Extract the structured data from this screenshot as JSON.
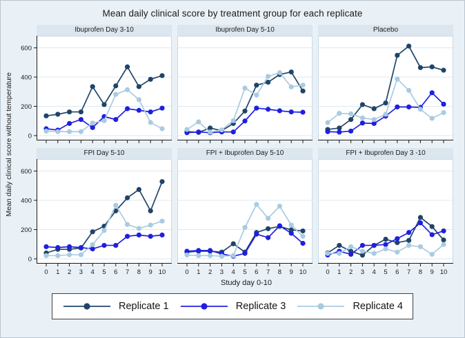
{
  "title": "Mean daily clinical score by treatment group for each replicate",
  "y_axis_label": "Mean daily clinical score without temperature",
  "x_axis_label": "Study day 0-10",
  "colors": {
    "background": "#e9f1f7",
    "panel_header_bg": "#dce6ee",
    "plot_bg": "#ffffff",
    "gridline": "#dce9f2",
    "panel_border": "#c9d9e5",
    "axis": "#1a1a1a",
    "replicate1": "#1f4468",
    "replicate3": "#1f1fe0",
    "replicate4": "#a9cbe2"
  },
  "series_meta": [
    {
      "name": "Replicate 1",
      "color": "#1f4468"
    },
    {
      "name": "Replicate 3",
      "color": "#1f1fe0"
    },
    {
      "name": "Replicate 4",
      "color": "#a9cbe2"
    }
  ],
  "chart_data": {
    "type": "line",
    "layout": "2 rows x 3 cols small multiples",
    "x": [
      0,
      1,
      2,
      3,
      4,
      5,
      6,
      7,
      8,
      9,
      10
    ],
    "x_ticks": [
      0,
      1,
      2,
      3,
      4,
      5,
      6,
      7,
      8,
      9,
      10
    ],
    "y_ticks": [
      0,
      200,
      400,
      600
    ],
    "ylim": [
      0,
      650
    ],
    "grid": true,
    "legend_position": "bottom",
    "panels": [
      {
        "title": "Ibuprofen Day 3-10",
        "series": [
          {
            "name": "Replicate 1",
            "values": [
              135,
              146,
              162,
              162,
              335,
              212,
              340,
              470,
              335,
              385,
              410
            ]
          },
          {
            "name": "Replicate 3",
            "values": [
              47,
              38,
              83,
              110,
              55,
              130,
              110,
              184,
              173,
              162,
              188
            ]
          },
          {
            "name": "Replicate 4",
            "values": [
              31,
              27,
              27,
              27,
              86,
              102,
              282,
              314,
              246,
              90,
              47
            ]
          }
        ]
      },
      {
        "title": "Ibuprofen Day 5-10",
        "series": [
          {
            "name": "Replicate 1",
            "values": [
              27,
              22,
              52,
              33,
              83,
              168,
              345,
              365,
              418,
              435,
              305
            ]
          },
          {
            "name": "Replicate 3",
            "values": [
              20,
              25,
              20,
              25,
              25,
              100,
              188,
              180,
              170,
              162,
              160
            ]
          },
          {
            "name": "Replicate 4",
            "values": [
              42,
              94,
              24,
              39,
              102,
              325,
              277,
              405,
              430,
              333,
              345
            ]
          }
        ]
      },
      {
        "title": "Placebo",
        "series": [
          {
            "name": "Replicate 1",
            "values": [
              42,
              52,
              110,
              212,
              184,
              223,
              549,
              612,
              465,
              470,
              447
            ]
          },
          {
            "name": "Replicate 3",
            "values": [
              27,
              24,
              31,
              86,
              83,
              133,
              196,
              196,
              193,
              293,
              215
            ]
          },
          {
            "name": "Replicate 4",
            "values": [
              89,
              152,
              149,
              121,
              110,
              146,
              387,
              309,
              180,
              118,
              157
            ]
          }
        ]
      },
      {
        "title": "FPI Day 5-10",
        "series": [
          {
            "name": "Replicate 1",
            "values": [
              40,
              65,
              65,
              74,
              185,
              223,
              328,
              417,
              474,
              328,
              528
            ]
          },
          {
            "name": "Replicate 3",
            "values": [
              83,
              77,
              83,
              77,
              68,
              92,
              92,
              154,
              163,
              154,
              163
            ]
          },
          {
            "name": "Replicate 4",
            "values": [
              22,
              22,
              28,
              28,
              97,
              194,
              366,
              235,
              208,
              231,
              258
            ]
          }
        ]
      },
      {
        "title": "FPI + Ibuprofen Day 5-10",
        "series": [
          {
            "name": "Replicate 1",
            "values": [
              46,
              52,
              52,
              46,
              103,
              46,
              180,
              206,
              222,
              198,
              191
            ]
          },
          {
            "name": "Replicate 3",
            "values": [
              52,
              57,
              57,
              34,
              18,
              37,
              169,
              145,
              226,
              175,
              106
            ]
          },
          {
            "name": "Replicate 4",
            "values": [
              26,
              22,
              22,
              18,
              22,
              215,
              372,
              277,
              360,
              231,
              154
            ]
          }
        ]
      },
      {
        "title": "FPI + Ibuprofen Day 3 -10",
        "series": [
          {
            "name": "Replicate 1",
            "values": [
              41,
              92,
              52,
              25,
              92,
              134,
              111,
              126,
              283,
              221,
              129
            ]
          },
          {
            "name": "Replicate 3",
            "values": [
              26,
              52,
              31,
              92,
              92,
              98,
              138,
              180,
              246,
              165,
              191
            ]
          },
          {
            "name": "Replicate 4",
            "values": [
              37,
              37,
              83,
              52,
              37,
              68,
              46,
              92,
              83,
              31,
              98
            ]
          }
        ]
      }
    ]
  },
  "legend": {
    "entries": [
      {
        "label": "Replicate 1"
      },
      {
        "label": "Replicate 3"
      },
      {
        "label": "Replicate 4"
      }
    ]
  }
}
